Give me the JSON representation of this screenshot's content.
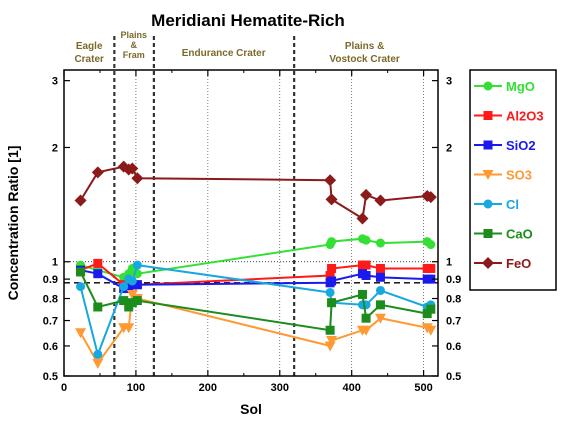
{
  "chart_data": {
    "type": "line",
    "title": "Meridiani Hematite-Rich",
    "xlabel": "Sol",
    "ylabel": "Concentration Ratio [1]",
    "xlim": [
      0,
      520
    ],
    "ylim": [
      0.5,
      3.2
    ],
    "y_scale": "log",
    "x_ticks": [
      "0",
      "100",
      "200",
      "300",
      "400",
      "500"
    ],
    "x_tick_values": [
      0,
      100,
      200,
      300,
      400,
      500
    ],
    "y_ticks_left": [
      "0.5",
      "0.6",
      "0.7",
      "0.8",
      "0.9",
      "1",
      "2",
      "3"
    ],
    "y_ticks_right": [
      "0.5",
      "0.6",
      "0.7",
      "0.8",
      "0.9",
      "1",
      "2",
      "3"
    ],
    "y_tick_values": [
      0.5,
      0.6,
      0.7,
      0.8,
      0.9,
      1,
      2,
      3
    ],
    "grid": "vertical dotted at x ticks",
    "legend_position": "right, outside plot",
    "reference_lines": [
      {
        "value": 1.0,
        "style": "dotted"
      },
      {
        "value": 0.88,
        "style": "dashed"
      }
    ],
    "region_dividers": [
      70,
      125,
      320
    ],
    "regions": [
      {
        "label": "Eagle\nCrater",
        "x_center": 35
      },
      {
        "label": "Plains\n&\nFram",
        "x_center": 97
      },
      {
        "label": "Endurance Crater",
        "x_center": 222
      },
      {
        "label": "Plains &\nVostock Crater",
        "x_center": 418
      }
    ],
    "series": [
      {
        "name": "MgO",
        "color": "#33e033",
        "marker": "circle",
        "x": [
          23,
          47,
          83,
          90,
          95,
          102,
          370,
          372,
          415,
          420,
          440,
          505,
          510
        ],
        "y": [
          0.98,
          0.95,
          0.91,
          0.93,
          0.96,
          0.93,
          1.11,
          1.13,
          1.15,
          1.14,
          1.12,
          1.13,
          1.11
        ]
      },
      {
        "name": "Al2O3",
        "color": "#ff1a1a",
        "marker": "square",
        "x": [
          23,
          47,
          83,
          90,
          95,
          102,
          370,
          372,
          415,
          420,
          440,
          505,
          510
        ],
        "y": [
          0.95,
          0.99,
          0.87,
          0.86,
          0.87,
          0.87,
          0.92,
          0.96,
          0.98,
          0.98,
          0.96,
          0.96,
          0.96
        ]
      },
      {
        "name": "SiO2",
        "color": "#1a1aee",
        "marker": "square",
        "x": [
          23,
          47,
          83,
          90,
          95,
          102,
          370,
          372,
          415,
          420,
          440,
          505,
          510
        ],
        "y": [
          0.95,
          0.93,
          0.85,
          0.85,
          0.87,
          0.87,
          0.88,
          0.89,
          0.93,
          0.92,
          0.91,
          0.9,
          0.9
        ]
      },
      {
        "name": "SO3",
        "color": "#ff9933",
        "marker": "triangle-down",
        "x": [
          23,
          47,
          83,
          90,
          95,
          102,
          370,
          372,
          415,
          420,
          440,
          505,
          510
        ],
        "y": [
          0.65,
          0.54,
          0.67,
          0.67,
          0.82,
          0.8,
          0.6,
          0.62,
          0.66,
          0.66,
          0.71,
          0.67,
          0.66
        ]
      },
      {
        "name": "Cl",
        "color": "#18a8e0",
        "marker": "circle",
        "x": [
          23,
          47,
          83,
          90,
          95,
          102,
          370,
          372,
          415,
          420,
          440,
          505,
          510
        ],
        "y": [
          0.86,
          0.57,
          0.86,
          0.9,
          0.89,
          0.98,
          0.83,
          0.78,
          0.77,
          0.77,
          0.84,
          0.76,
          0.77
        ]
      },
      {
        "name": "CaO",
        "color": "#1c8c1c",
        "marker": "square",
        "x": [
          23,
          47,
          83,
          90,
          95,
          102,
          370,
          372,
          415,
          420,
          440,
          505,
          510
        ],
        "y": [
          0.94,
          0.76,
          0.79,
          0.76,
          0.78,
          0.79,
          0.66,
          0.78,
          0.82,
          0.71,
          0.77,
          0.73,
          0.75
        ]
      },
      {
        "name": "FeO",
        "color": "#8c1a1a",
        "marker": "diamond",
        "x": [
          23,
          47,
          83,
          90,
          95,
          102,
          370,
          372,
          415,
          420,
          440,
          505,
          510
        ],
        "y": [
          1.45,
          1.72,
          1.78,
          1.75,
          1.76,
          1.66,
          1.64,
          1.46,
          1.3,
          1.5,
          1.45,
          1.49,
          1.48
        ]
      }
    ]
  }
}
